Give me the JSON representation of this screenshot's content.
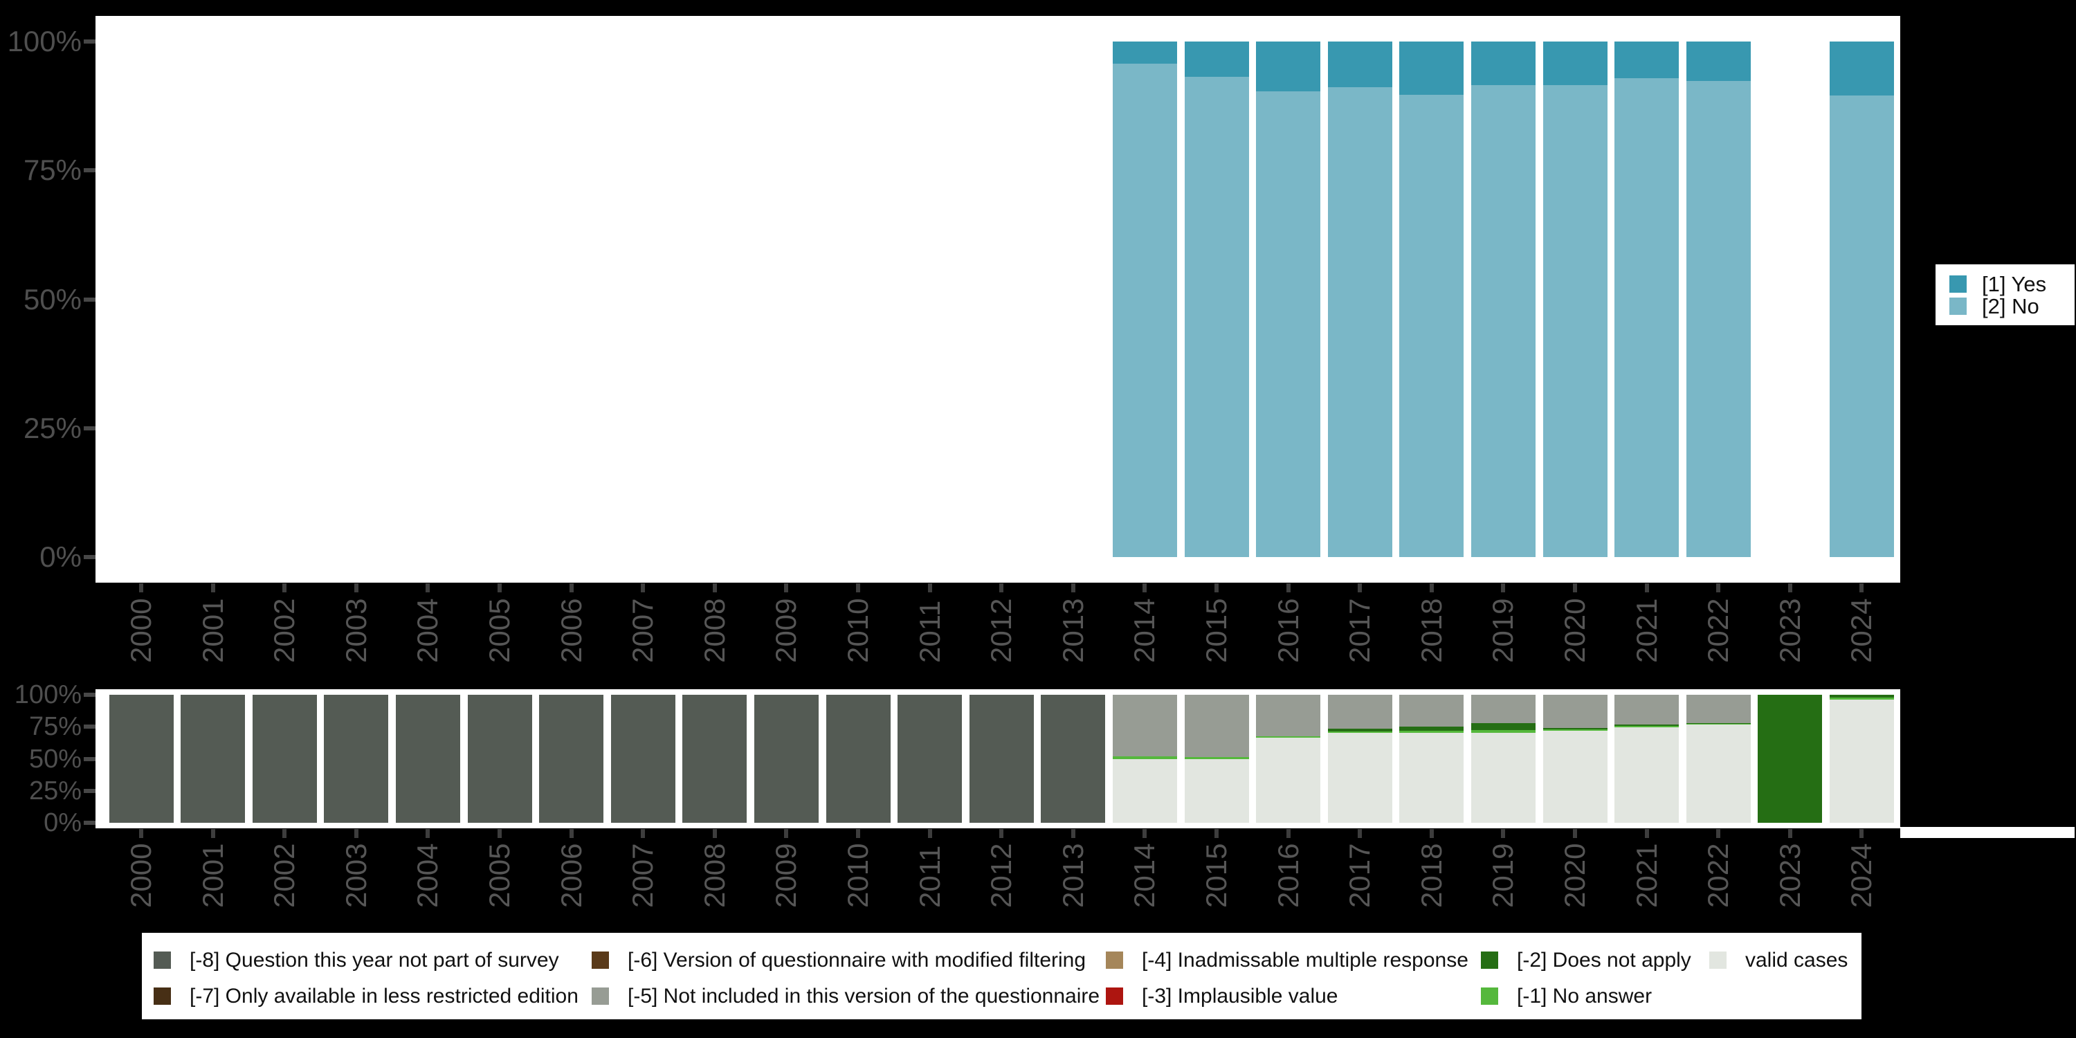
{
  "background_color": "#000000",
  "panel_color": "#ffffff",
  "axis_text_color": "#4f4f4f",
  "colors": {
    "[1] Yes": "#3898b0",
    "[2] No": "#7ab7c7",
    "[-8] Question this year not part of survey": "#545b54",
    "[-7] Only available in less restricted edition": "#472f15",
    "[-6] Version of questionnaire with modified filtering": "#5a3a19",
    "[-5] Not included in this version of the questionnaire": "#979c94",
    "[-4] Inadmissable multiple response": "#a5865a",
    "[-3] Implausible value": "#ad1510",
    "[-2] Does not apply": "#256e14",
    "[-1] No answer": "#55b83c",
    "valid cases": "#e2e6e0"
  },
  "chart_data": [
    {
      "name": "frequencies",
      "type": "bar",
      "stacked": true,
      "unit": "percent",
      "ylim": [
        0,
        100
      ],
      "grid": false,
      "y_tick_labels": [
        "100%",
        "75%",
        "50%",
        "25%",
        "0%"
      ],
      "x_categories": [
        "2000",
        "2001",
        "2002",
        "2003",
        "2004",
        "2005",
        "2006",
        "2007",
        "2008",
        "2009",
        "2010",
        "2011",
        "2012",
        "2013",
        "2014",
        "2015",
        "2016",
        "2017",
        "2018",
        "2019",
        "2020",
        "2021",
        "2022",
        "2023",
        "2024"
      ],
      "legend_position": "right",
      "legend": [
        {
          "label": "[1] Yes",
          "color": "#3898b0"
        },
        {
          "label": "[2] No",
          "color": "#7ab7c7"
        }
      ],
      "series": [
        {
          "year": "2014",
          "segments": [
            {
              "label": "[1] Yes",
              "pct": 4.3
            },
            {
              "label": "[2] No",
              "pct": 95.7
            }
          ]
        },
        {
          "year": "2015",
          "segments": [
            {
              "label": "[1] Yes",
              "pct": 6.9
            },
            {
              "label": "[2] No",
              "pct": 93.1
            }
          ]
        },
        {
          "year": "2016",
          "segments": [
            {
              "label": "[1] Yes",
              "pct": 9.7
            },
            {
              "label": "[2] No",
              "pct": 90.3
            }
          ]
        },
        {
          "year": "2017",
          "segments": [
            {
              "label": "[1] Yes",
              "pct": 8.9
            },
            {
              "label": "[2] No",
              "pct": 91.1
            }
          ]
        },
        {
          "year": "2018",
          "segments": [
            {
              "label": "[1] Yes",
              "pct": 10.4
            },
            {
              "label": "[2] No",
              "pct": 89.6
            }
          ]
        },
        {
          "year": "2019",
          "segments": [
            {
              "label": "[1] Yes",
              "pct": 8.5
            },
            {
              "label": "[2] No",
              "pct": 91.5
            }
          ]
        },
        {
          "year": "2020",
          "segments": [
            {
              "label": "[1] Yes",
              "pct": 8.5
            },
            {
              "label": "[2] No",
              "pct": 91.5
            }
          ]
        },
        {
          "year": "2021",
          "segments": [
            {
              "label": "[1] Yes",
              "pct": 7.1
            },
            {
              "label": "[2] No",
              "pct": 92.9
            }
          ]
        },
        {
          "year": "2022",
          "segments": [
            {
              "label": "[1] Yes",
              "pct": 7.7
            },
            {
              "label": "[2] No",
              "pct": 92.3
            }
          ]
        },
        {
          "year": "2024",
          "segments": [
            {
              "label": "[1] Yes",
              "pct": 10.5
            },
            {
              "label": "[2] No",
              "pct": 89.5
            }
          ]
        }
      ]
    },
    {
      "name": "missing-values",
      "type": "bar",
      "stacked": true,
      "unit": "percent",
      "ylim": [
        0,
        100
      ],
      "grid": false,
      "y_tick_labels": [
        "100%",
        "75%",
        "50%",
        "25%",
        "0%"
      ],
      "x_categories": [
        "2000",
        "2001",
        "2002",
        "2003",
        "2004",
        "2005",
        "2006",
        "2007",
        "2008",
        "2009",
        "2010",
        "2011",
        "2012",
        "2013",
        "2014",
        "2015",
        "2016",
        "2017",
        "2018",
        "2019",
        "2020",
        "2021",
        "2022",
        "2023",
        "2024"
      ],
      "legend_position": "bottom",
      "legend_rows": [
        [
          "[-8] Question this year not part of survey",
          "[-6] Version of questionnaire with modified filtering",
          "[-4] Inadmissable multiple response",
          "[-2] Does not apply",
          "valid cases"
        ],
        [
          "[-7] Only available in less restricted edition",
          "[-5] Not included in this version of the questionnaire",
          "[-3] Implausible value",
          "[-1] No answer"
        ]
      ],
      "series": [
        {
          "year": "2000",
          "segments": [
            {
              "label": "[-8] Question this year not part of survey",
              "pct": 100
            }
          ]
        },
        {
          "year": "2001",
          "segments": [
            {
              "label": "[-8] Question this year not part of survey",
              "pct": 100
            }
          ]
        },
        {
          "year": "2002",
          "segments": [
            {
              "label": "[-8] Question this year not part of survey",
              "pct": 100
            }
          ]
        },
        {
          "year": "2003",
          "segments": [
            {
              "label": "[-8] Question this year not part of survey",
              "pct": 100
            }
          ]
        },
        {
          "year": "2004",
          "segments": [
            {
              "label": "[-8] Question this year not part of survey",
              "pct": 100
            }
          ]
        },
        {
          "year": "2005",
          "segments": [
            {
              "label": "[-8] Question this year not part of survey",
              "pct": 100
            }
          ]
        },
        {
          "year": "2006",
          "segments": [
            {
              "label": "[-8] Question this year not part of survey",
              "pct": 100
            }
          ]
        },
        {
          "year": "2007",
          "segments": [
            {
              "label": "[-8] Question this year not part of survey",
              "pct": 100
            }
          ]
        },
        {
          "year": "2008",
          "segments": [
            {
              "label": "[-8] Question this year not part of survey",
              "pct": 100
            }
          ]
        },
        {
          "year": "2009",
          "segments": [
            {
              "label": "[-8] Question this year not part of survey",
              "pct": 100
            }
          ]
        },
        {
          "year": "2010",
          "segments": [
            {
              "label": "[-8] Question this year not part of survey",
              "pct": 100
            }
          ]
        },
        {
          "year": "2011",
          "segments": [
            {
              "label": "[-8] Question this year not part of survey",
              "pct": 100
            }
          ]
        },
        {
          "year": "2012",
          "segments": [
            {
              "label": "[-8] Question this year not part of survey",
              "pct": 100
            }
          ]
        },
        {
          "year": "2013",
          "segments": [
            {
              "label": "[-8] Question this year not part of survey",
              "pct": 100
            }
          ]
        },
        {
          "year": "2014",
          "segments": [
            {
              "label": "[-5] Not included in this version of the questionnaire",
              "pct": 48
            },
            {
              "label": "[-1] No answer",
              "pct": 2
            },
            {
              "label": "valid cases",
              "pct": 50
            }
          ]
        },
        {
          "year": "2015",
          "segments": [
            {
              "label": "[-5] Not included in this version of the questionnaire",
              "pct": 48.5
            },
            {
              "label": "[-1] No answer",
              "pct": 1.5
            },
            {
              "label": "valid cases",
              "pct": 50
            }
          ]
        },
        {
          "year": "2016",
          "segments": [
            {
              "label": "[-5] Not included in this version of the questionnaire",
              "pct": 32.5
            },
            {
              "label": "[-1] No answer",
              "pct": 1
            },
            {
              "label": "valid cases",
              "pct": 66.5
            }
          ]
        },
        {
          "year": "2017",
          "segments": [
            {
              "label": "[-5] Not included in this version of the questionnaire",
              "pct": 26.5
            },
            {
              "label": "[-2] Does not apply",
              "pct": 2
            },
            {
              "label": "[-1] No answer",
              "pct": 1
            },
            {
              "label": "valid cases",
              "pct": 70.5
            }
          ]
        },
        {
          "year": "2018",
          "segments": [
            {
              "label": "[-5] Not included in this version of the questionnaire",
              "pct": 25
            },
            {
              "label": "[-2] Does not apply",
              "pct": 3
            },
            {
              "label": "[-1] No answer",
              "pct": 1.5
            },
            {
              "label": "valid cases",
              "pct": 70.5
            }
          ]
        },
        {
          "year": "2019",
          "segments": [
            {
              "label": "[-5] Not included in this version of the questionnaire",
              "pct": 22
            },
            {
              "label": "[-2] Does not apply",
              "pct": 5.5
            },
            {
              "label": "[-1] No answer",
              "pct": 2
            },
            {
              "label": "valid cases",
              "pct": 70.5
            }
          ]
        },
        {
          "year": "2020",
          "segments": [
            {
              "label": "[-5] Not included in this version of the questionnaire",
              "pct": 26
            },
            {
              "label": "[-2] Does not apply",
              "pct": 1
            },
            {
              "label": "[-1] No answer",
              "pct": 1
            },
            {
              "label": "valid cases",
              "pct": 72
            }
          ]
        },
        {
          "year": "2021",
          "segments": [
            {
              "label": "[-5] Not included in this version of the questionnaire",
              "pct": 23.5
            },
            {
              "label": "[-2] Does not apply",
              "pct": 0.7
            },
            {
              "label": "[-1] No answer",
              "pct": 1.3
            },
            {
              "label": "valid cases",
              "pct": 74.5
            }
          ]
        },
        {
          "year": "2022",
          "segments": [
            {
              "label": "[-5] Not included in this version of the questionnaire",
              "pct": 22
            },
            {
              "label": "[-2] Does not apply",
              "pct": 0.7
            },
            {
              "label": "[-1] No answer",
              "pct": 0.8
            },
            {
              "label": "valid cases",
              "pct": 76.5
            }
          ]
        },
        {
          "year": "2023",
          "segments": [
            {
              "label": "[-2] Does not apply",
              "pct": 100
            }
          ]
        },
        {
          "year": "2024",
          "segments": [
            {
              "label": "[-2] Does not apply",
              "pct": 2
            },
            {
              "label": "[-1] No answer",
              "pct": 1.8
            },
            {
              "label": "valid cases",
              "pct": 96.2
            }
          ]
        }
      ]
    }
  ]
}
